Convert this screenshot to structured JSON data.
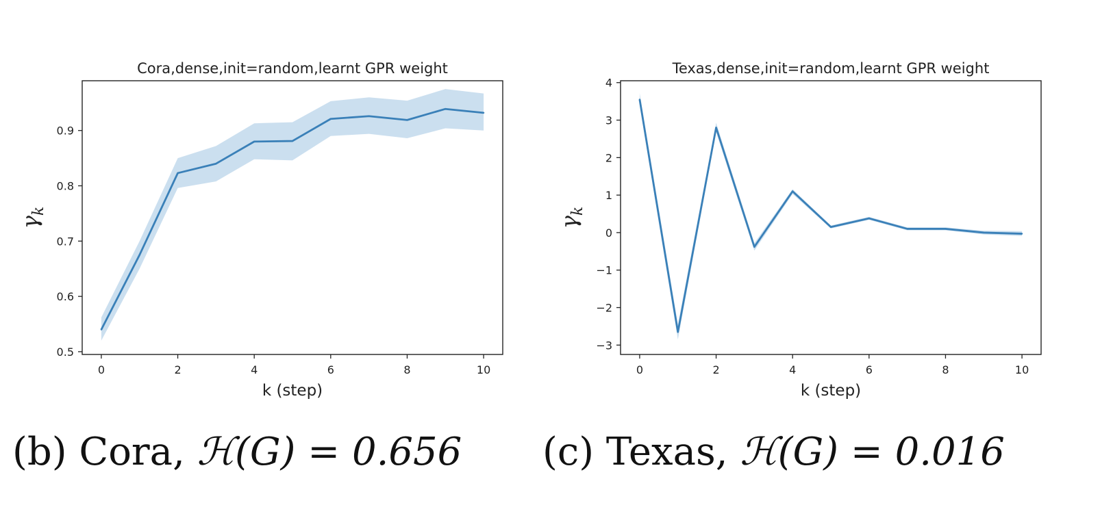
{
  "chart_data": [
    {
      "type": "line",
      "title": "Cora,dense,init=random,learnt GPR weight",
      "xlabel": "k (step)",
      "ylabel": "γ",
      "ylabel_sub": "k",
      "x": [
        0,
        1,
        2,
        3,
        4,
        5,
        6,
        7,
        8,
        9,
        10
      ],
      "series": [
        {
          "values": [
            0.54,
            0.675,
            0.823,
            0.84,
            0.88,
            0.881,
            0.921,
            0.926,
            0.919,
            0.939,
            0.932
          ],
          "lower": [
            0.52,
            0.65,
            0.796,
            0.808,
            0.848,
            0.846,
            0.89,
            0.894,
            0.886,
            0.904,
            0.9
          ],
          "upper": [
            0.562,
            0.7,
            0.85,
            0.872,
            0.913,
            0.915,
            0.953,
            0.96,
            0.954,
            0.975,
            0.967
          ]
        }
      ],
      "xlim": [
        -0.5,
        10.5
      ],
      "ylim": [
        0.495,
        0.99
      ],
      "xticks": [
        0,
        2,
        4,
        6,
        8,
        10
      ],
      "xtick_labels": [
        "0",
        "2",
        "4",
        "6",
        "8",
        "10"
      ],
      "yticks": [
        0.5,
        0.6,
        0.7,
        0.8,
        0.9
      ],
      "ytick_labels": [
        "0.5",
        "0.6",
        "0.7",
        "0.8",
        "0.9"
      ],
      "grid": false,
      "color": "#3a80b8",
      "band_color": "#b9d4ea"
    },
    {
      "type": "line",
      "title": "Texas,dense,init=random,learnt GPR weight",
      "xlabel": "k (step)",
      "ylabel": "γ",
      "ylabel_sub": "k",
      "x": [
        0,
        1,
        2,
        3,
        4,
        5,
        6,
        7,
        8,
        9,
        10
      ],
      "series": [
        {
          "values": [
            3.55,
            -2.65,
            2.8,
            -0.38,
            1.1,
            0.15,
            0.38,
            0.1,
            0.1,
            0.0,
            -0.03
          ],
          "lower": [
            3.4,
            -2.85,
            2.68,
            -0.48,
            1.03,
            0.11,
            0.34,
            0.06,
            0.06,
            -0.05,
            -0.09
          ],
          "upper": [
            3.72,
            -2.45,
            2.93,
            -0.28,
            1.16,
            0.19,
            0.42,
            0.14,
            0.14,
            0.05,
            0.04
          ]
        }
      ],
      "xlim": [
        -0.5,
        10.5
      ],
      "ylim": [
        -3.25,
        4.05
      ],
      "xticks": [
        0,
        2,
        4,
        6,
        8,
        10
      ],
      "xtick_labels": [
        "0",
        "2",
        "4",
        "6",
        "8",
        "10"
      ],
      "yticks": [
        -3,
        -2,
        -1,
        0,
        1,
        2,
        3,
        4
      ],
      "ytick_labels": [
        "−3",
        "−2",
        "−1",
        "0",
        "1",
        "2",
        "3",
        "4"
      ],
      "grid": false,
      "color": "#3a80b8",
      "band_color": "#b9d4ea"
    }
  ],
  "captions": [
    {
      "prefix": "(b) Cora, ",
      "math": "ℋ(G) = 0.656"
    },
    {
      "prefix": "(c) Texas, ",
      "math": "ℋ(G) = 0.016"
    }
  ]
}
